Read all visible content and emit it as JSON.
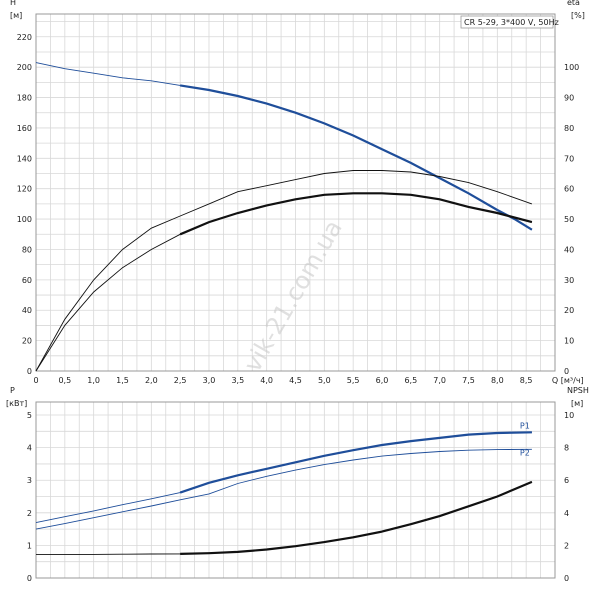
{
  "colors": {
    "blue": "#1f4e9a",
    "black": "#111111",
    "grid": "#d8d8d8",
    "frame": "#999999"
  },
  "watermark": "vik-21.com.ua",
  "chart_data": [
    {
      "type": "line",
      "title": "CR 5-29, 3*400 V, 50Hz",
      "xlabel": "Q [м³/ч]",
      "ylabel_left": "H\n[м]",
      "ylabel_right": "eta\n[%]",
      "xlim": [
        0,
        9.0
      ],
      "xticks": [
        0,
        0.5,
        1.0,
        1.5,
        2.0,
        2.5,
        3.0,
        3.5,
        4.0,
        4.5,
        5.0,
        5.5,
        6.0,
        6.5,
        7.0,
        7.5,
        8.0,
        8.5
      ],
      "xticklabels": [
        "0",
        "0,5",
        "1,0",
        "1,5",
        "2,0",
        "2,5",
        "3,0",
        "3,5",
        "4,0",
        "4,5",
        "5,0",
        "5,5",
        "6,0",
        "6,5",
        "7,0",
        "7,5",
        "8,0",
        "8,5"
      ],
      "ylim_left": [
        0,
        235
      ],
      "yticks_left": [
        0,
        20,
        40,
        60,
        80,
        100,
        120,
        140,
        160,
        180,
        200,
        220
      ],
      "ylim_right": [
        0,
        117.5
      ],
      "yticks_right": [
        0,
        10,
        20,
        30,
        40,
        50,
        60,
        70,
        80,
        90,
        100
      ],
      "grid": true,
      "legend_position": "top-right",
      "series": [
        {
          "axis": "left",
          "color": "#1f4e9a",
          "thick_from": 2.5,
          "x": [
            0,
            0.5,
            1.0,
            1.5,
            2.0,
            2.5,
            3.0,
            3.5,
            4.0,
            4.5,
            5.0,
            5.5,
            6.0,
            6.5,
            7.0,
            7.5,
            8.0,
            8.3,
            8.6
          ],
          "y": [
            203,
            199,
            196,
            193,
            191,
            188,
            185,
            181,
            176,
            170,
            163,
            155,
            146,
            137,
            127,
            117,
            106,
            100,
            93
          ]
        },
        {
          "axis": "right",
          "color": "#111111",
          "thick_from": 99,
          "x": [
            0,
            0.5,
            1.0,
            1.5,
            2.0,
            2.5,
            3.0,
            3.5,
            4.0,
            4.5,
            5.0,
            5.5,
            6.0,
            6.5,
            7.0,
            7.5,
            8.0,
            8.6
          ],
          "y": [
            0,
            17,
            30,
            40,
            47,
            51,
            55,
            59,
            61,
            63,
            65,
            66,
            66,
            65.5,
            64,
            62,
            59,
            55
          ]
        },
        {
          "axis": "right",
          "color": "#111111",
          "thick_from": 2.5,
          "x": [
            0,
            0.5,
            1.0,
            1.5,
            2.0,
            2.5,
            3.0,
            3.5,
            4.0,
            4.5,
            5.0,
            5.5,
            6.0,
            6.5,
            7.0,
            7.5,
            8.0,
            8.6
          ],
          "y": [
            0,
            15,
            26,
            34,
            40,
            45,
            49,
            52,
            54.5,
            56.5,
            58,
            58.5,
            58.5,
            58,
            56.5,
            54,
            52,
            49
          ]
        }
      ]
    },
    {
      "type": "line",
      "xlim": [
        0,
        9.0
      ],
      "ylabel_left": "P\n[кВт]",
      "ylabel_right": "NPSH\n[м]",
      "ylim_left": [
        0,
        5.4
      ],
      "yticks_left": [
        0,
        1,
        2,
        3,
        4,
        5
      ],
      "ylim_right": [
        0,
        10.8
      ],
      "yticks_right": [
        0,
        2,
        4,
        6,
        8,
        10
      ],
      "grid": true,
      "series": [
        {
          "name": "P1",
          "axis": "left",
          "color": "#1f4e9a",
          "thick_from": 2.5,
          "x": [
            0,
            0.5,
            1.0,
            1.5,
            2.0,
            2.5,
            3.0,
            3.5,
            4.0,
            4.5,
            5.0,
            5.5,
            6.0,
            6.5,
            7.0,
            7.5,
            8.0,
            8.6
          ],
          "y": [
            1.7,
            1.88,
            2.06,
            2.25,
            2.43,
            2.62,
            2.92,
            3.15,
            3.35,
            3.55,
            3.75,
            3.92,
            4.08,
            4.2,
            4.3,
            4.4,
            4.45,
            4.47
          ]
        },
        {
          "name": "P2",
          "axis": "left",
          "color": "#1f4e9a",
          "thick_from": 99,
          "x": [
            0,
            0.5,
            1.0,
            1.5,
            2.0,
            2.5,
            3.0,
            3.5,
            4.0,
            4.5,
            5.0,
            5.5,
            6.0,
            6.5,
            7.0,
            7.5,
            8.0,
            8.6
          ],
          "y": [
            1.5,
            1.67,
            1.85,
            2.03,
            2.21,
            2.4,
            2.58,
            2.9,
            3.12,
            3.31,
            3.48,
            3.62,
            3.74,
            3.82,
            3.88,
            3.92,
            3.94,
            3.95
          ]
        },
        {
          "name": "NPSH",
          "axis": "right",
          "color": "#111111",
          "thick_from": 2.5,
          "x": [
            0,
            0.5,
            1.0,
            1.5,
            2.0,
            2.5,
            3.0,
            3.5,
            4.0,
            4.5,
            5.0,
            5.5,
            6.0,
            6.5,
            7.0,
            7.5,
            8.0,
            8.6
          ],
          "y": [
            1.45,
            1.45,
            1.45,
            1.46,
            1.47,
            1.48,
            1.52,
            1.6,
            1.75,
            1.95,
            2.2,
            2.5,
            2.85,
            3.3,
            3.8,
            4.4,
            5.0,
            5.9
          ]
        }
      ]
    }
  ]
}
